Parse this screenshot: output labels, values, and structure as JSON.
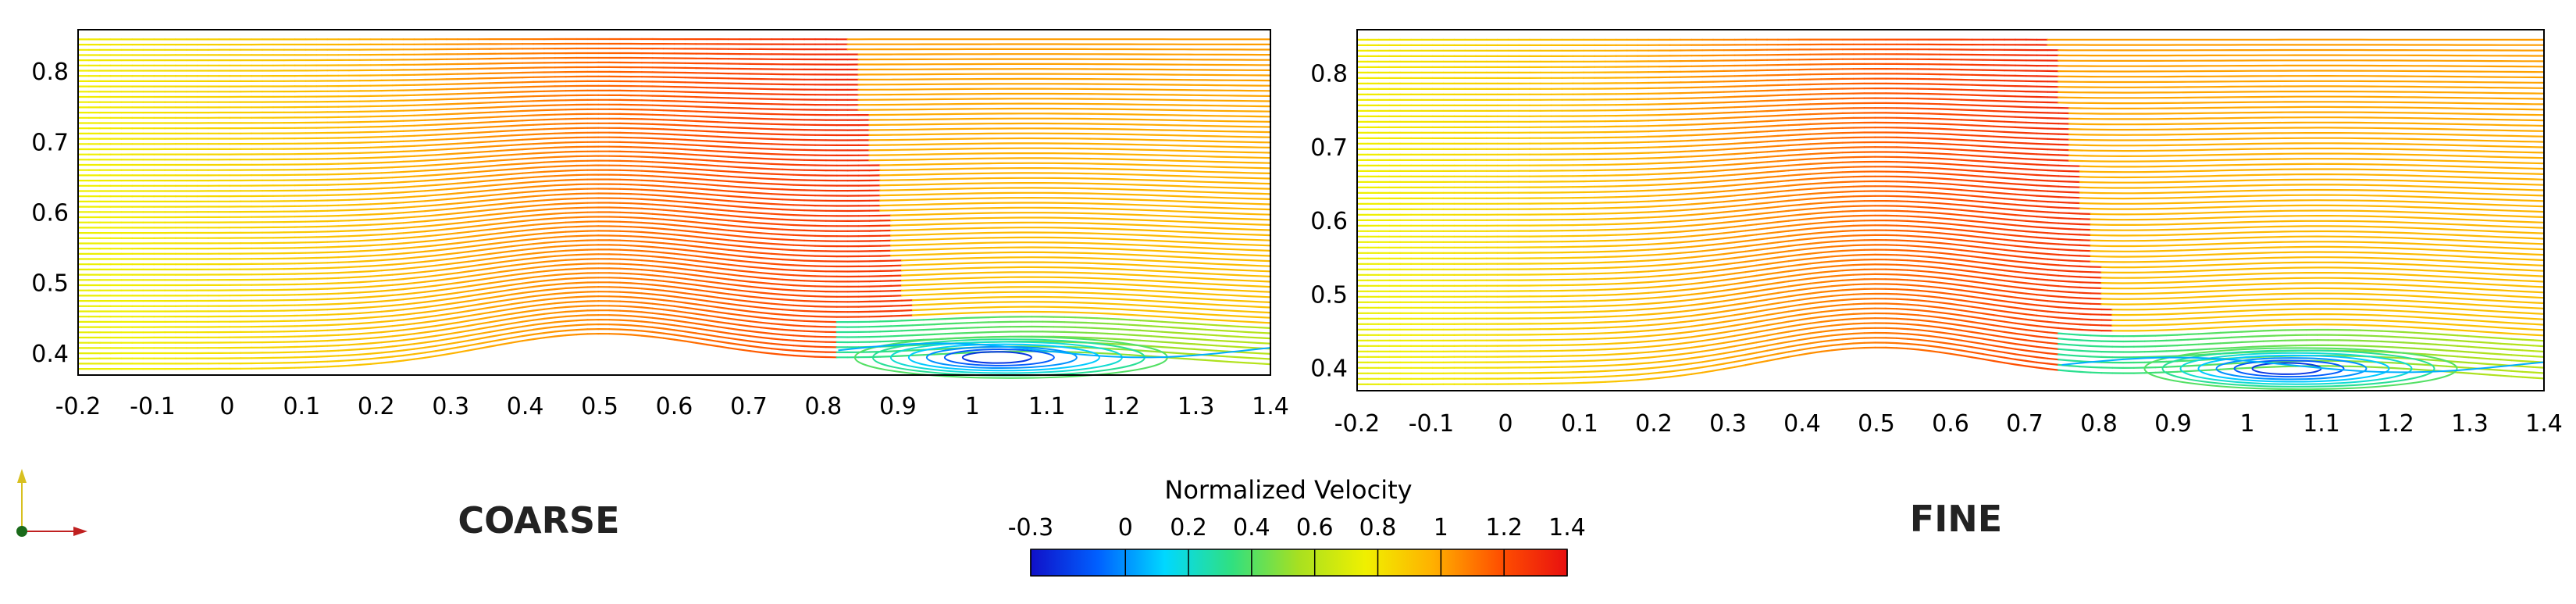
{
  "chart_data": {
    "type": "streamline",
    "colorbar": {
      "title": "Normalized Velocity",
      "min": -0.3,
      "max": 1.4,
      "ticks": [
        "-0.3",
        "0",
        "0.2",
        "0.4",
        "0.6",
        "0.8",
        "1",
        "1.2",
        "1.4"
      ],
      "colormap": [
        "#1010c8",
        "#0060ff",
        "#00d8ff",
        "#30e080",
        "#a8e020",
        "#f0f000",
        "#ffb000",
        "#ff5000",
        "#e81010"
      ]
    },
    "panels": [
      {
        "label": "COARSE",
        "xlim": [
          -0.2,
          1.4
        ],
        "ylim": [
          0.37,
          0.86
        ],
        "x_ticks": [
          "-0.2",
          "-0.1",
          "0",
          "0.1",
          "0.2",
          "0.3",
          "0.4",
          "0.5",
          "0.6",
          "0.7",
          "0.8",
          "0.9",
          "1",
          "1.1",
          "1.2",
          "1.3",
          "1.4"
        ],
        "y_ticks": [
          "0.4",
          "0.5",
          "0.6",
          "0.7",
          "0.8"
        ],
        "shock_position_x": 0.93,
        "separation_start_x": 0.82,
        "recirculation_center": [
          1.03,
          0.395
        ]
      },
      {
        "label": "FINE",
        "xlim": [
          -0.2,
          1.4
        ],
        "ylim": [
          0.37,
          0.86
        ],
        "x_ticks": [
          "-0.2",
          "-0.1",
          "0",
          "0.1",
          "0.2",
          "0.3",
          "0.4",
          "0.5",
          "0.6",
          "0.7",
          "0.8",
          "0.9",
          "1",
          "1.1",
          "1.2",
          "1.3",
          "1.4"
        ],
        "y_ticks": [
          "0.4",
          "0.5",
          "0.6",
          "0.7",
          "0.8"
        ],
        "shock_position_x": 0.83,
        "separation_start_x": 0.75,
        "recirculation_center": [
          1.05,
          0.4
        ]
      }
    ]
  }
}
